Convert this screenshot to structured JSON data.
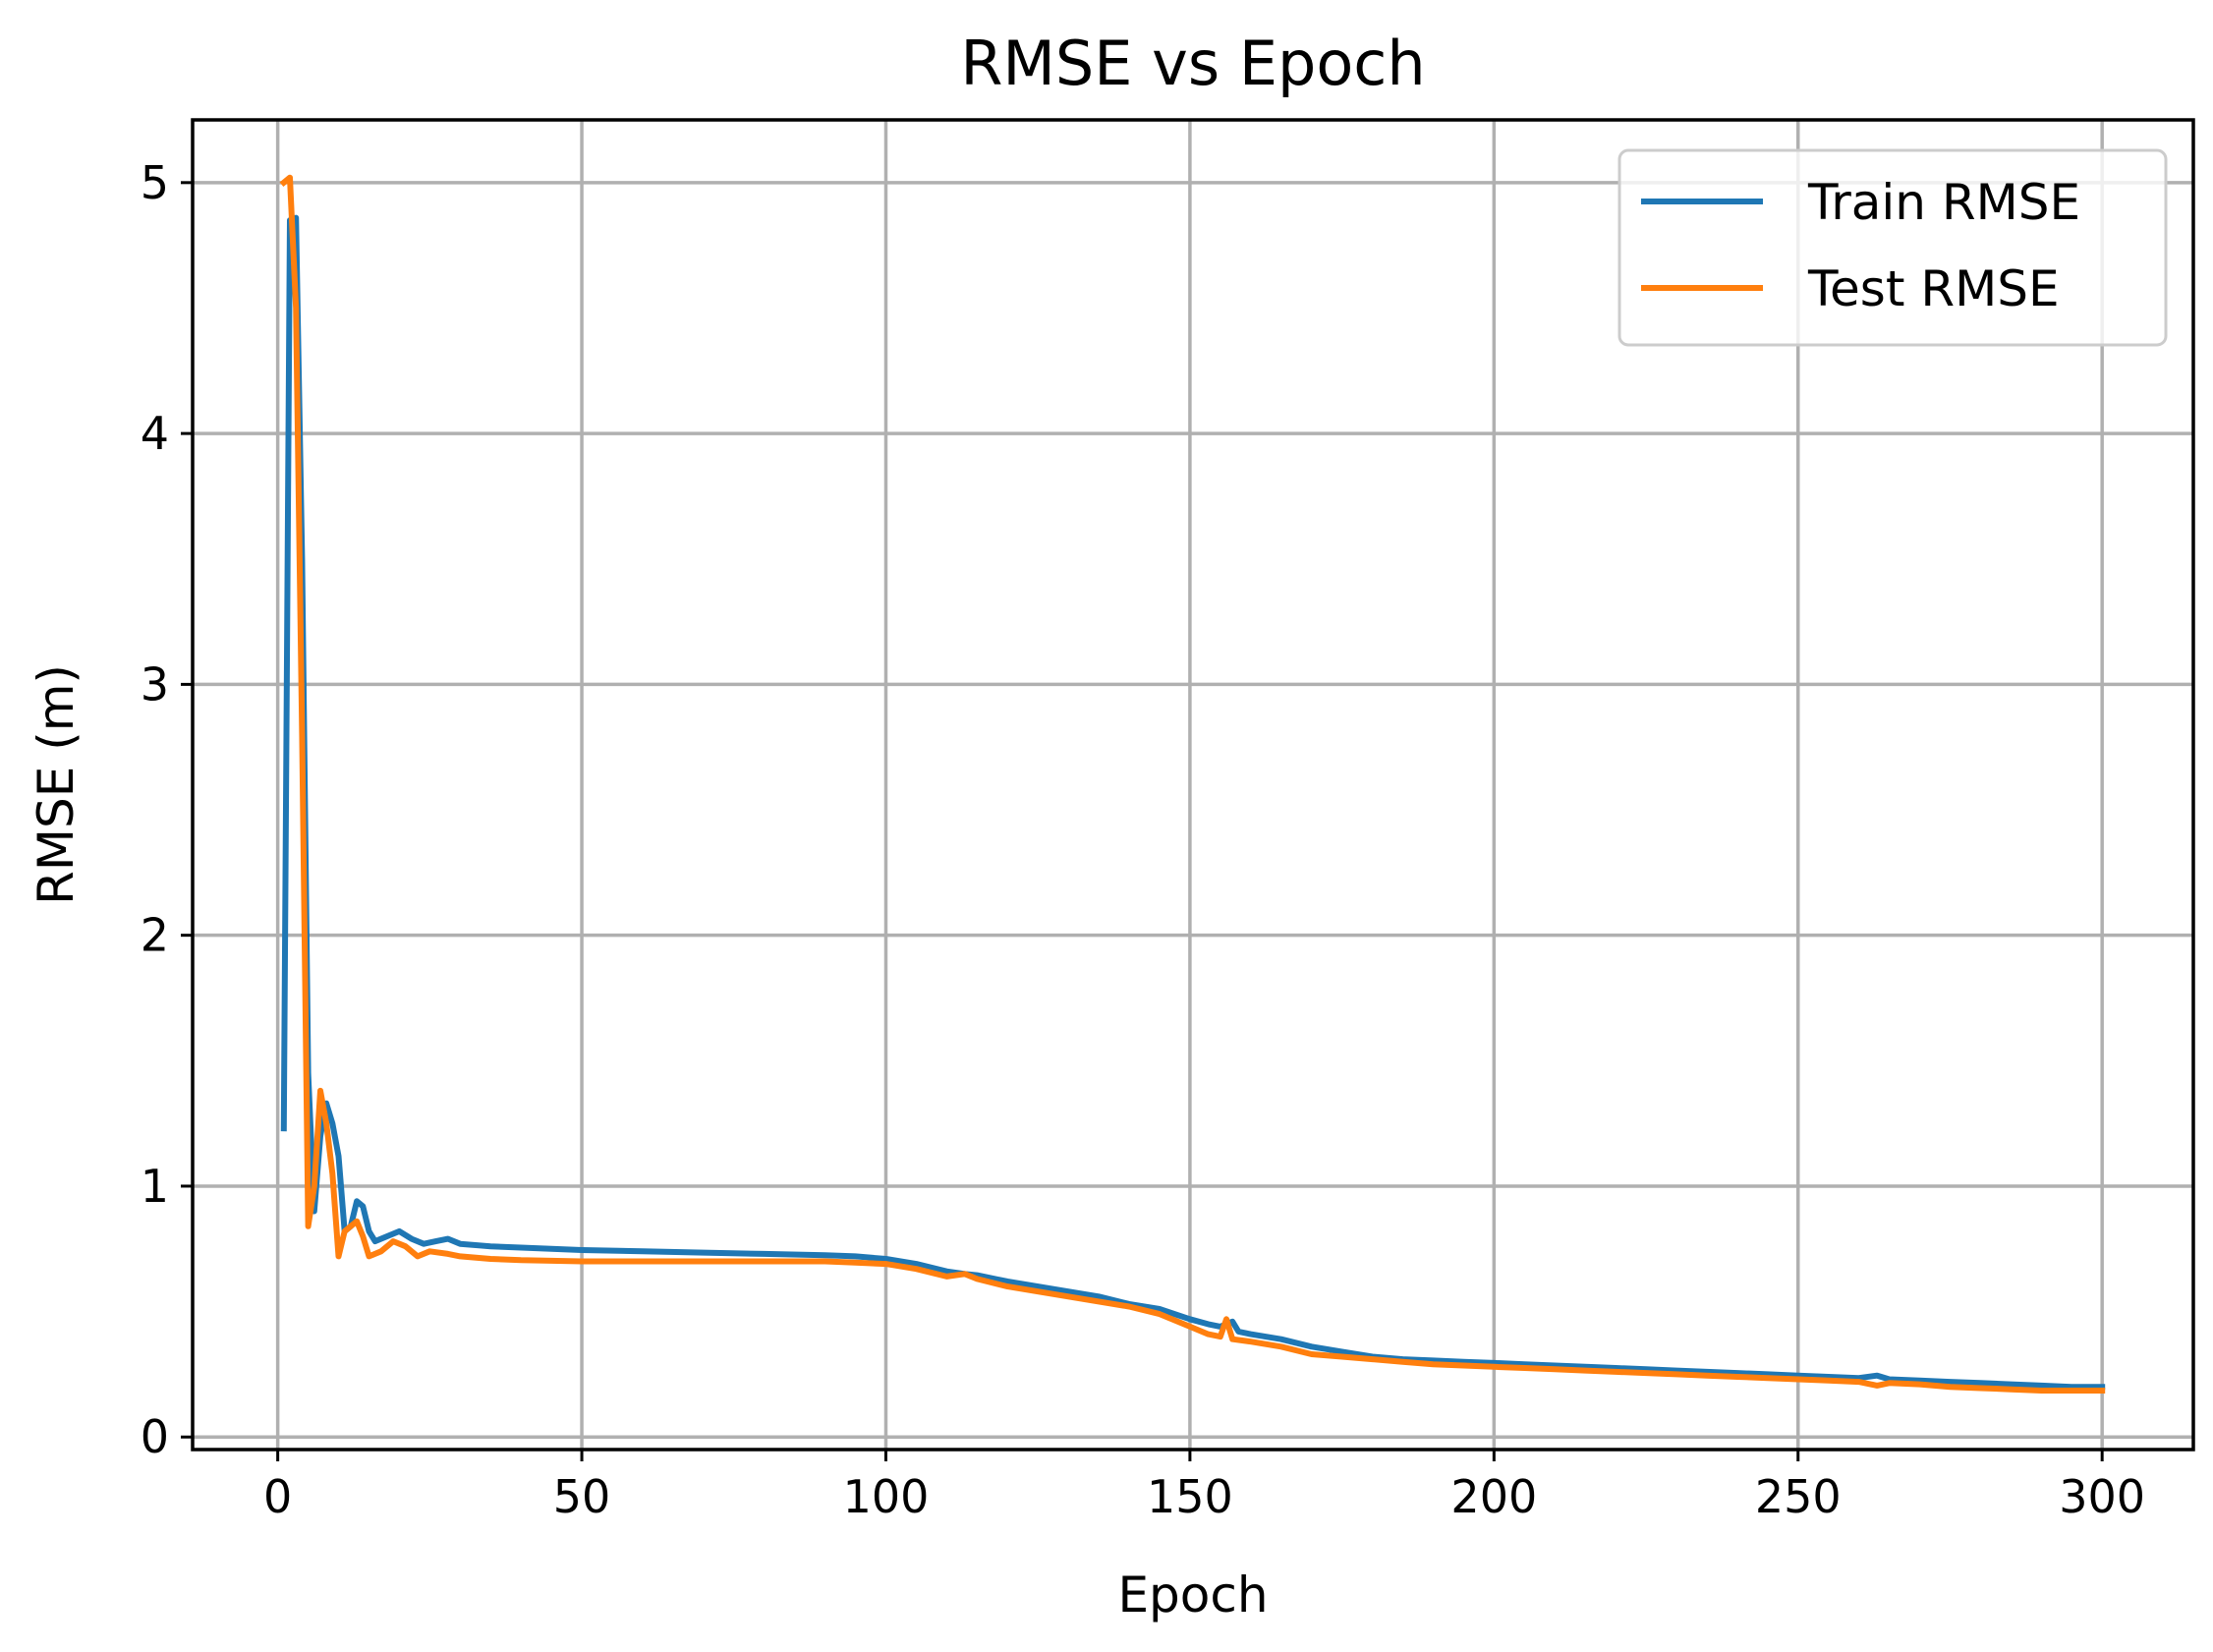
{
  "chart_data": {
    "type": "line",
    "title": "RMSE vs Epoch",
    "xlabel": "Epoch",
    "ylabel": "RMSE (m)",
    "xlim": [
      -14,
      315
    ],
    "ylim": [
      -0.05,
      5.25
    ],
    "xticks": [
      0,
      50,
      100,
      150,
      200,
      250,
      300
    ],
    "yticks": [
      0,
      1,
      2,
      3,
      4,
      5
    ],
    "grid": true,
    "legend_position": "top-right",
    "series": [
      {
        "name": "Train RMSE",
        "color": "#1f77b4",
        "points": [
          [
            1,
            1.23
          ],
          [
            2,
            4.85
          ],
          [
            3,
            4.86
          ],
          [
            4,
            3.5
          ],
          [
            5,
            1.45
          ],
          [
            6,
            0.9
          ],
          [
            7,
            1.2
          ],
          [
            8,
            1.33
          ],
          [
            9,
            1.25
          ],
          [
            10,
            1.12
          ],
          [
            11,
            0.82
          ],
          [
            12,
            0.84
          ],
          [
            13,
            0.94
          ],
          [
            14,
            0.92
          ],
          [
            15,
            0.82
          ],
          [
            16,
            0.78
          ],
          [
            18,
            0.8
          ],
          [
            20,
            0.82
          ],
          [
            22,
            0.79
          ],
          [
            24,
            0.77
          ],
          [
            26,
            0.78
          ],
          [
            28,
            0.79
          ],
          [
            30,
            0.77
          ],
          [
            35,
            0.76
          ],
          [
            40,
            0.755
          ],
          [
            45,
            0.75
          ],
          [
            50,
            0.745
          ],
          [
            60,
            0.74
          ],
          [
            70,
            0.735
          ],
          [
            80,
            0.73
          ],
          [
            90,
            0.725
          ],
          [
            95,
            0.72
          ],
          [
            100,
            0.71
          ],
          [
            105,
            0.69
          ],
          [
            110,
            0.66
          ],
          [
            113,
            0.65
          ],
          [
            115,
            0.645
          ],
          [
            120,
            0.62
          ],
          [
            125,
            0.6
          ],
          [
            130,
            0.58
          ],
          [
            135,
            0.56
          ],
          [
            140,
            0.53
          ],
          [
            145,
            0.51
          ],
          [
            150,
            0.47
          ],
          [
            153,
            0.45
          ],
          [
            155,
            0.44
          ],
          [
            157,
            0.46
          ],
          [
            158,
            0.42
          ],
          [
            160,
            0.41
          ],
          [
            165,
            0.39
          ],
          [
            170,
            0.36
          ],
          [
            175,
            0.34
          ],
          [
            180,
            0.32
          ],
          [
            185,
            0.31
          ],
          [
            190,
            0.305
          ],
          [
            195,
            0.3
          ],
          [
            200,
            0.295
          ],
          [
            205,
            0.29
          ],
          [
            210,
            0.285
          ],
          [
            215,
            0.28
          ],
          [
            220,
            0.275
          ],
          [
            225,
            0.27
          ],
          [
            230,
            0.265
          ],
          [
            235,
            0.26
          ],
          [
            240,
            0.255
          ],
          [
            245,
            0.25
          ],
          [
            250,
            0.245
          ],
          [
            255,
            0.24
          ],
          [
            260,
            0.235
          ],
          [
            263,
            0.245
          ],
          [
            265,
            0.23
          ],
          [
            270,
            0.225
          ],
          [
            275,
            0.22
          ],
          [
            280,
            0.215
          ],
          [
            285,
            0.21
          ],
          [
            290,
            0.205
          ],
          [
            295,
            0.2
          ],
          [
            300,
            0.2
          ]
        ]
      },
      {
        "name": "Test RMSE",
        "color": "#ff7f0e",
        "points": [
          [
            1,
            5.0
          ],
          [
            2,
            5.02
          ],
          [
            3,
            4.5
          ],
          [
            4,
            2.8
          ],
          [
            5,
            0.84
          ],
          [
            6,
            1.0
          ],
          [
            7,
            1.38
          ],
          [
            8,
            1.25
          ],
          [
            9,
            1.05
          ],
          [
            10,
            0.72
          ],
          [
            11,
            0.82
          ],
          [
            12,
            0.84
          ],
          [
            13,
            0.86
          ],
          [
            14,
            0.8
          ],
          [
            15,
            0.72
          ],
          [
            17,
            0.74
          ],
          [
            19,
            0.78
          ],
          [
            21,
            0.76
          ],
          [
            23,
            0.72
          ],
          [
            25,
            0.74
          ],
          [
            28,
            0.73
          ],
          [
            30,
            0.72
          ],
          [
            35,
            0.71
          ],
          [
            40,
            0.705
          ],
          [
            50,
            0.7
          ],
          [
            60,
            0.7
          ],
          [
            70,
            0.7
          ],
          [
            80,
            0.7
          ],
          [
            90,
            0.7
          ],
          [
            95,
            0.695
          ],
          [
            100,
            0.69
          ],
          [
            105,
            0.67
          ],
          [
            110,
            0.64
          ],
          [
            113,
            0.65
          ],
          [
            115,
            0.63
          ],
          [
            120,
            0.6
          ],
          [
            125,
            0.58
          ],
          [
            130,
            0.56
          ],
          [
            135,
            0.54
          ],
          [
            140,
            0.52
          ],
          [
            145,
            0.49
          ],
          [
            150,
            0.44
          ],
          [
            153,
            0.41
          ],
          [
            155,
            0.4
          ],
          [
            156,
            0.47
          ],
          [
            157,
            0.39
          ],
          [
            160,
            0.38
          ],
          [
            165,
            0.36
          ],
          [
            170,
            0.33
          ],
          [
            175,
            0.32
          ],
          [
            180,
            0.31
          ],
          [
            185,
            0.3
          ],
          [
            190,
            0.29
          ],
          [
            195,
            0.285
          ],
          [
            200,
            0.28
          ],
          [
            205,
            0.275
          ],
          [
            210,
            0.27
          ],
          [
            215,
            0.265
          ],
          [
            220,
            0.26
          ],
          [
            225,
            0.255
          ],
          [
            230,
            0.25
          ],
          [
            235,
            0.245
          ],
          [
            240,
            0.24
          ],
          [
            245,
            0.235
          ],
          [
            250,
            0.23
          ],
          [
            255,
            0.225
          ],
          [
            260,
            0.22
          ],
          [
            263,
            0.205
          ],
          [
            265,
            0.215
          ],
          [
            270,
            0.21
          ],
          [
            275,
            0.2
          ],
          [
            280,
            0.195
          ],
          [
            285,
            0.19
          ],
          [
            290,
            0.185
          ],
          [
            295,
            0.185
          ],
          [
            300,
            0.185
          ]
        ]
      }
    ]
  }
}
